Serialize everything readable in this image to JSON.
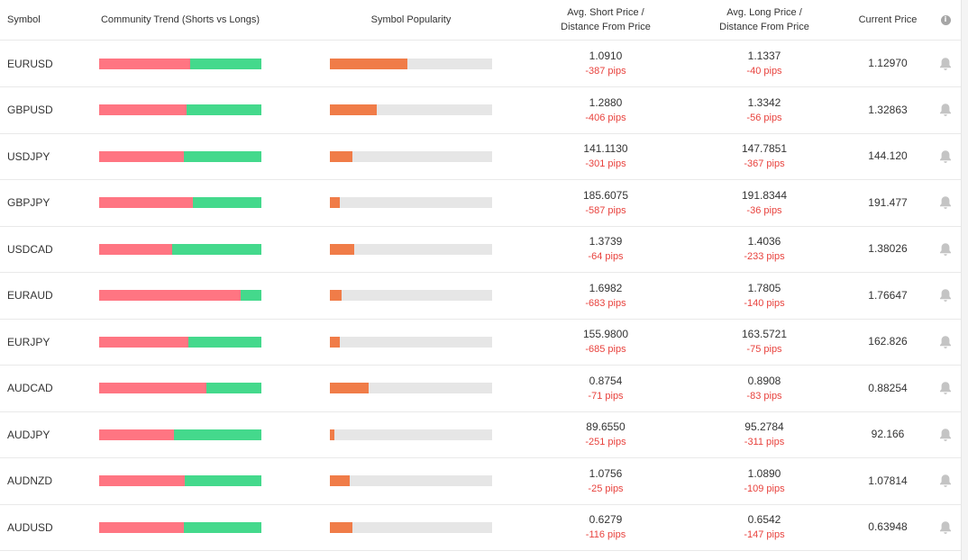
{
  "header": {
    "symbol": "Symbol",
    "trend": "Community Trend (Shorts vs Longs)",
    "popularity": "Symbol Popularity",
    "short_line1": "Avg. Short Price /",
    "short_line2": "Distance From Price",
    "long_line1": "Avg. Long Price /",
    "long_line2": "Distance From Price",
    "current": "Current Price",
    "info_icon": "info-icon"
  },
  "colors": {
    "short_bar": "#ff7582",
    "long_bar": "#44d98c",
    "popularity_fill": "#f07c48",
    "popularity_track": "#e6e6e6",
    "pips": "#e8423d"
  },
  "rows": [
    {
      "symbol": "EURUSD",
      "short_pct": 56,
      "popularity_pct": 48,
      "avg_short": "1.0910",
      "short_pips": "-387 pips",
      "avg_long": "1.1337",
      "long_pips": "-40 pips",
      "current": "1.12970"
    },
    {
      "symbol": "GBPUSD",
      "short_pct": 54,
      "popularity_pct": 29,
      "avg_short": "1.2880",
      "short_pips": "-406 pips",
      "avg_long": "1.3342",
      "long_pips": "-56 pips",
      "current": "1.32863"
    },
    {
      "symbol": "USDJPY",
      "short_pct": 52,
      "popularity_pct": 14,
      "avg_short": "141.1130",
      "short_pips": "-301 pips",
      "avg_long": "147.7851",
      "long_pips": "-367 pips",
      "current": "144.120"
    },
    {
      "symbol": "GBPJPY",
      "short_pct": 58,
      "popularity_pct": 6,
      "avg_short": "185.6075",
      "short_pips": "-587 pips",
      "avg_long": "191.8344",
      "long_pips": "-36 pips",
      "current": "191.477"
    },
    {
      "symbol": "USDCAD",
      "short_pct": 45,
      "popularity_pct": 15,
      "avg_short": "1.3739",
      "short_pips": "-64 pips",
      "avg_long": "1.4036",
      "long_pips": "-233 pips",
      "current": "1.38026"
    },
    {
      "symbol": "EURAUD",
      "short_pct": 87,
      "popularity_pct": 7,
      "avg_short": "1.6982",
      "short_pips": "-683 pips",
      "avg_long": "1.7805",
      "long_pips": "-140 pips",
      "current": "1.76647"
    },
    {
      "symbol": "EURJPY",
      "short_pct": 55,
      "popularity_pct": 6,
      "avg_short": "155.9800",
      "short_pips": "-685 pips",
      "avg_long": "163.5721",
      "long_pips": "-75 pips",
      "current": "162.826"
    },
    {
      "symbol": "AUDCAD",
      "short_pct": 66,
      "popularity_pct": 24,
      "avg_short": "0.8754",
      "short_pips": "-71 pips",
      "avg_long": "0.8908",
      "long_pips": "-83 pips",
      "current": "0.88254"
    },
    {
      "symbol": "AUDJPY",
      "short_pct": 46,
      "popularity_pct": 3,
      "avg_short": "89.6550",
      "short_pips": "-251 pips",
      "avg_long": "95.2784",
      "long_pips": "-311 pips",
      "current": "92.166"
    },
    {
      "symbol": "AUDNZD",
      "short_pct": 53,
      "popularity_pct": 12,
      "avg_short": "1.0756",
      "short_pips": "-25 pips",
      "avg_long": "1.0890",
      "long_pips": "-109 pips",
      "current": "1.07814"
    },
    {
      "symbol": "AUDUSD",
      "short_pct": 52,
      "popularity_pct": 14,
      "avg_short": "0.6279",
      "short_pips": "-116 pips",
      "avg_long": "0.6542",
      "long_pips": "-147 pips",
      "current": "0.63948"
    }
  ],
  "row_icon": "bell-icon"
}
